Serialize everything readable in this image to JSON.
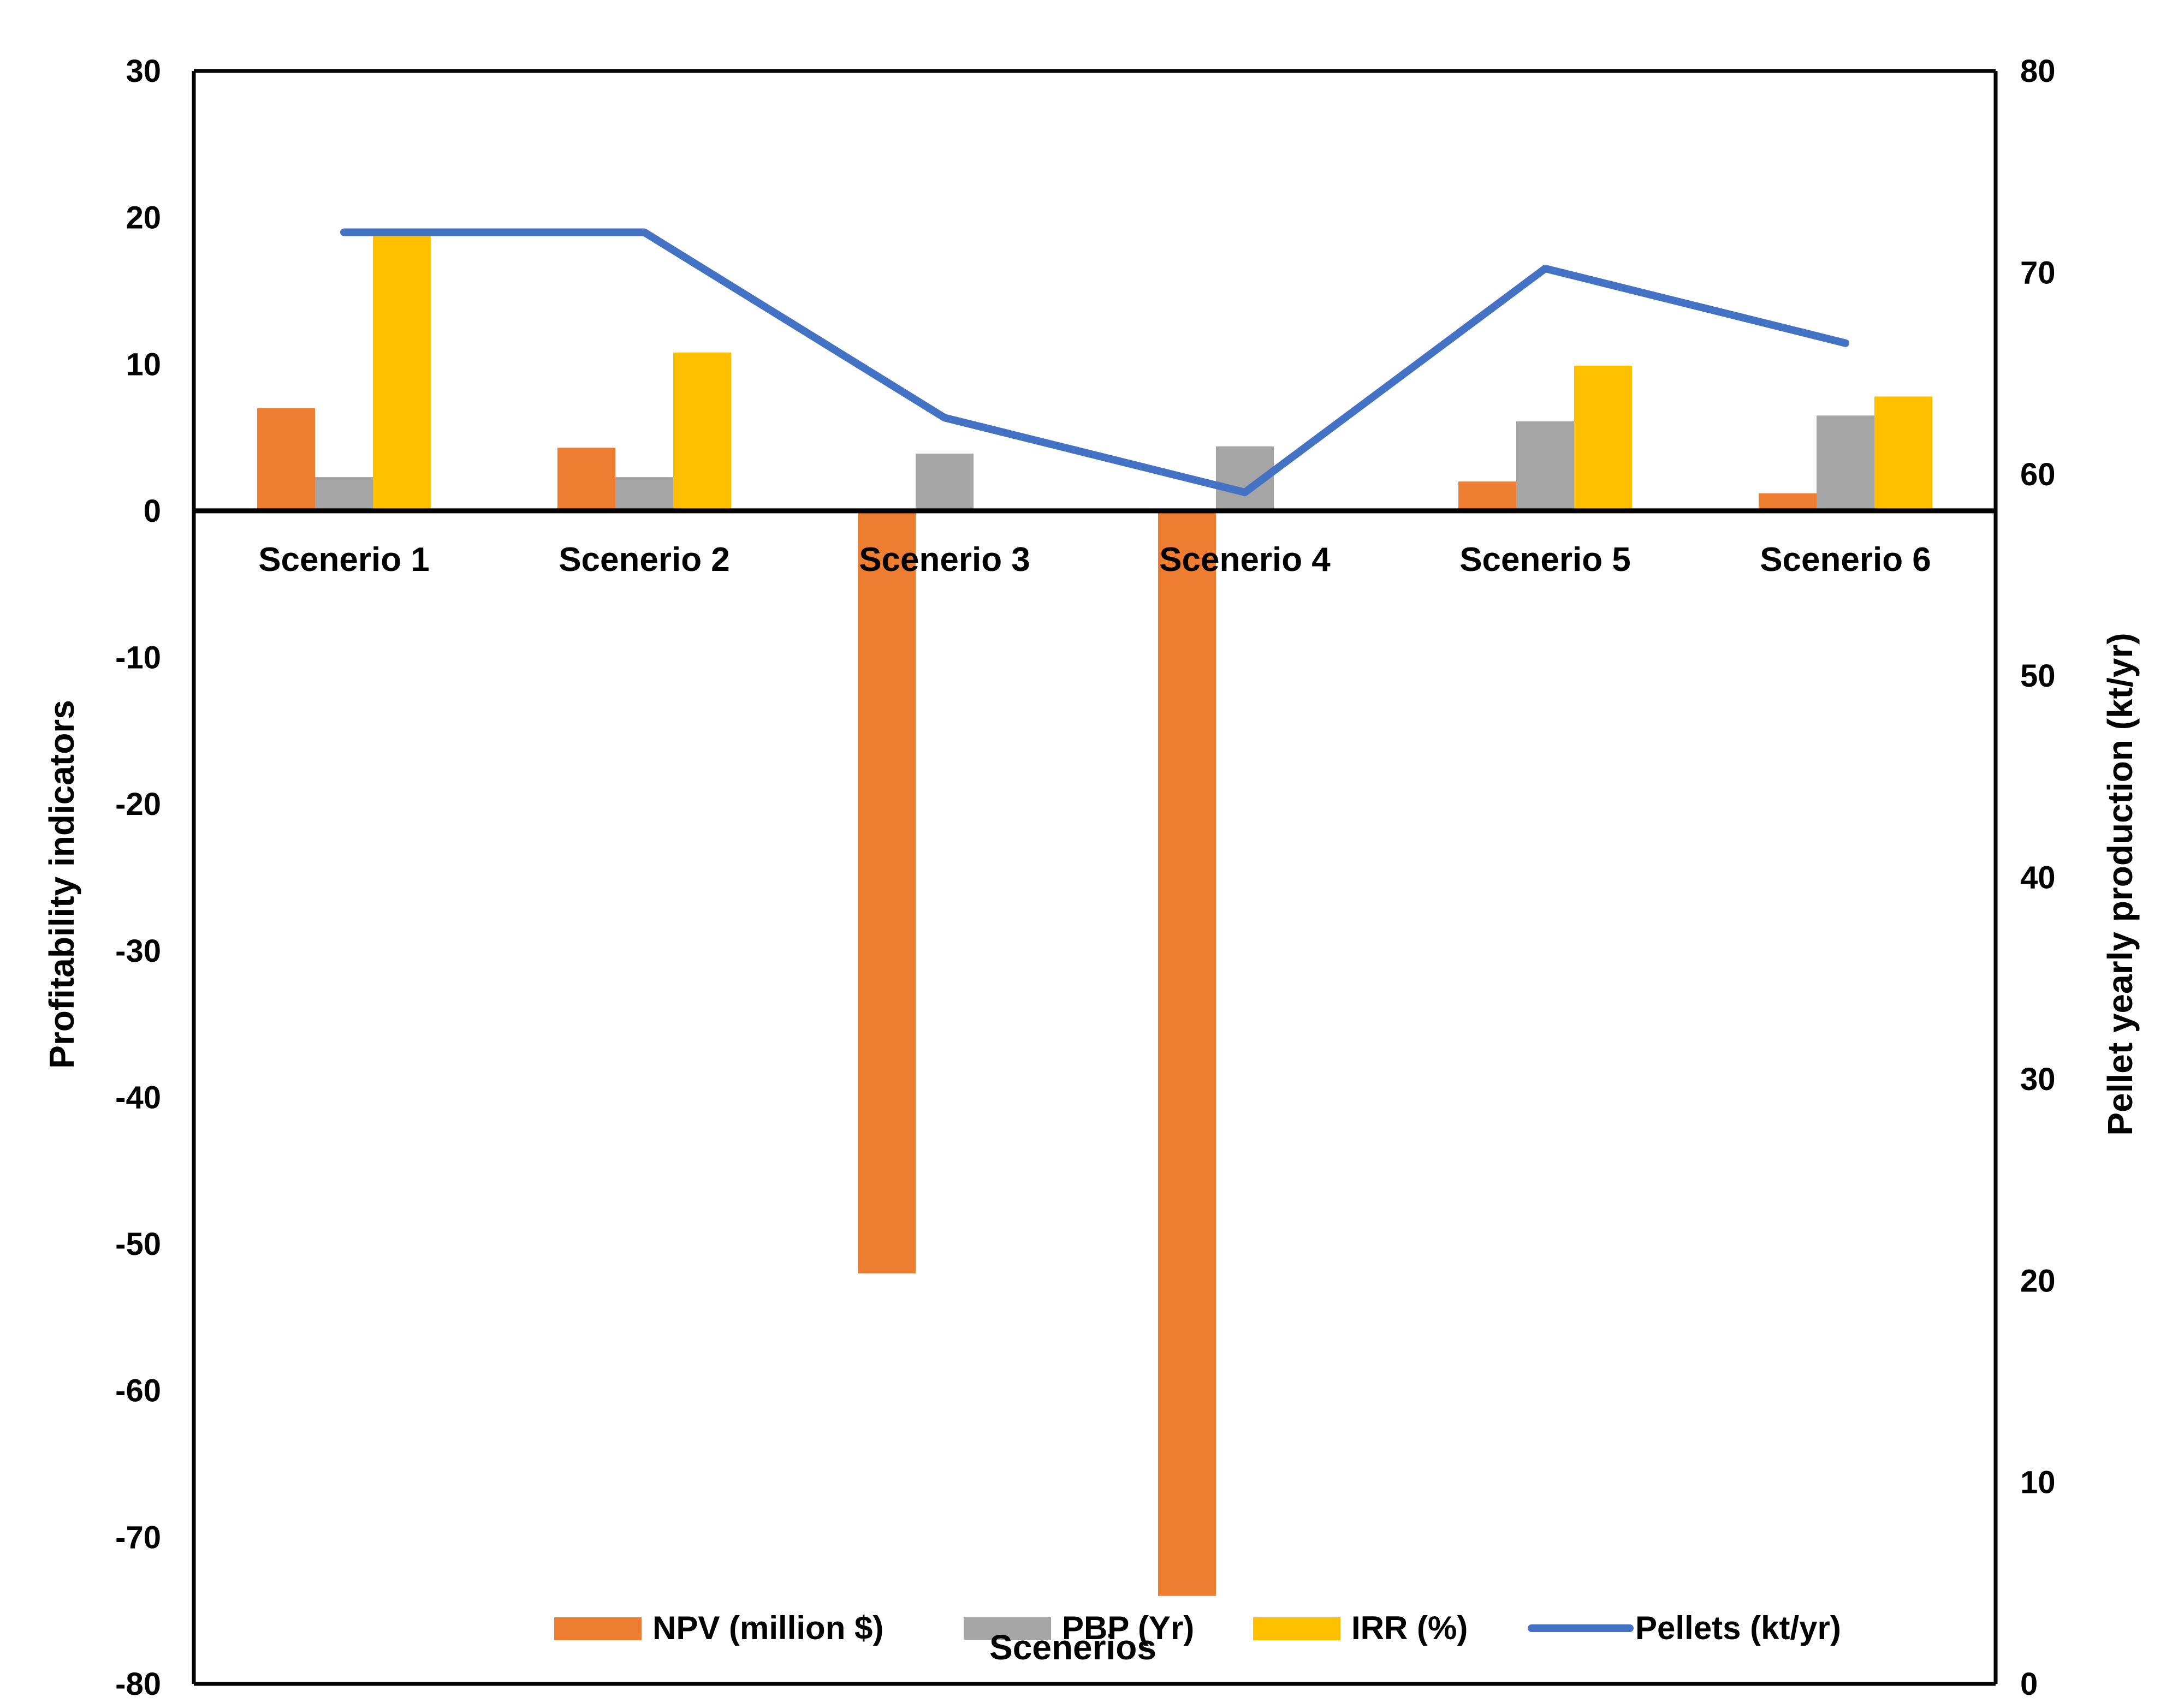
{
  "chart_data": {
    "type": "bar",
    "categories": [
      "Scenerio 1",
      "Scenerio 2",
      "Scenerio 3",
      "Scenerio 4",
      "Scenerio 5",
      "Scenerio 6"
    ],
    "series": [
      {
        "name": "NPV (million $)",
        "values": [
          7.0,
          4.3,
          -52.0,
          -74.0,
          2.0,
          1.2
        ],
        "color": "#ED7D31",
        "type": "bar",
        "axis": "left"
      },
      {
        "name": "PBP (Yr)",
        "values": [
          2.3,
          2.3,
          3.9,
          4.4,
          6.1,
          6.5
        ],
        "color": "#A5A5A5",
        "type": "bar",
        "axis": "left"
      },
      {
        "name": "IRR (%)",
        "values": [
          19.0,
          10.8,
          0,
          0,
          9.9,
          7.8
        ],
        "color": "#FFC000",
        "type": "bar",
        "axis": "left"
      },
      {
        "name": "Pellets (kt/yr)",
        "values": [
          72.0,
          72.0,
          62.8,
          59.1,
          70.2,
          66.5
        ],
        "color": "#4472C4",
        "type": "line",
        "axis": "right"
      }
    ],
    "xlabel": "Scenerios",
    "ylabel": "Profitability indicators",
    "y2label": "Pellet yearly production (kt/yr)",
    "ylim": [
      -80,
      30
    ],
    "y2lim": [
      0,
      80
    ],
    "yticks": [
      "30",
      "20",
      "10",
      "0",
      "-10",
      "-20",
      "-30",
      "-40",
      "-50",
      "-60",
      "-70",
      "-80"
    ],
    "y2ticks": [
      "80",
      "70",
      "60",
      "50",
      "40",
      "30",
      "20",
      "10",
      "0"
    ],
    "legend_position": "bottom",
    "grid": false
  }
}
